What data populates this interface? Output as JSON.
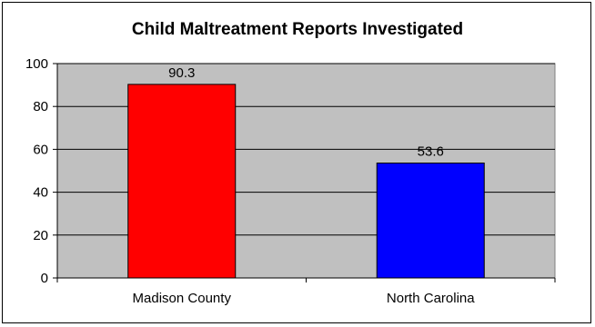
{
  "chart_data": {
    "type": "bar",
    "title": "Child Maltreatment Reports Investigated",
    "categories": [
      "Madison County",
      "North Carolina"
    ],
    "values": [
      90.3,
      53.6
    ],
    "bar_colors": [
      "#ff0000",
      "#0000ff"
    ],
    "plot_background": "#c0c0c0",
    "ylim": [
      0,
      100
    ],
    "yticks": [
      0,
      20,
      40,
      60,
      80,
      100
    ],
    "grid": true,
    "legend": "none",
    "xlabel": "",
    "ylabel": ""
  }
}
